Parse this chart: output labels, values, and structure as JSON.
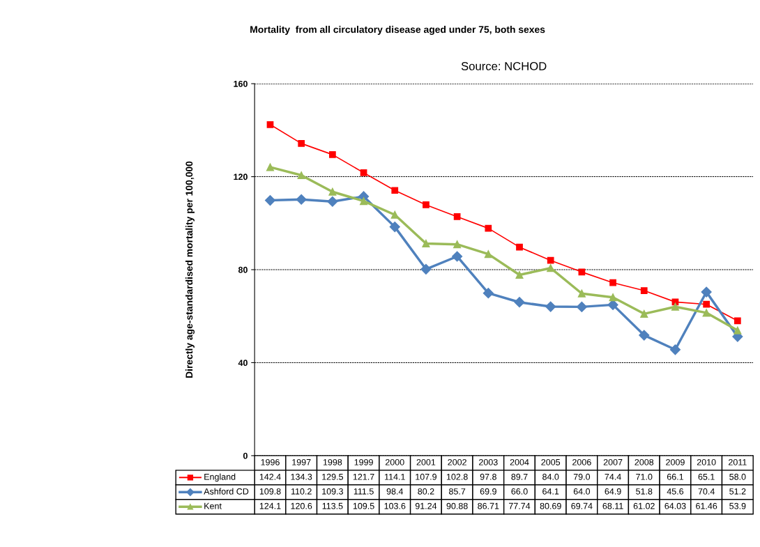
{
  "chart_data": {
    "type": "line",
    "title": "Mortality  from all circulatory disease aged under 75, both sexes",
    "subtitle": "Source: NCHOD",
    "ylabel": "Directly age-standardised mortality per 100,000",
    "categories": [
      "1996",
      "1997",
      "1998",
      "1999",
      "2000",
      "2001",
      "2002",
      "2003",
      "2004",
      "2005",
      "2006",
      "2007",
      "2008",
      "2009",
      "2010",
      "2011"
    ],
    "ylim": [
      0,
      160
    ],
    "yticks": [
      0,
      40,
      80,
      120,
      160
    ],
    "grid": "y",
    "legend": "bottom",
    "data_labels": true,
    "series": [
      {
        "name": "England",
        "color": "#ff0000",
        "marker": "square",
        "values": [
          142.4,
          134.3,
          129.5,
          121.7,
          114.1,
          107.9,
          102.8,
          97.8,
          89.7,
          84.0,
          79.0,
          74.4,
          71.0,
          66.1,
          65.1,
          58.0
        ],
        "value_labels": [
          "142.4",
          "134.3",
          "129.5",
          "121.7",
          "114.1",
          "107.9",
          "102.8",
          "97.8",
          "89.7",
          "84.0",
          "79.0",
          "74.4",
          "71.0",
          "66.1",
          "65.1",
          "58.0"
        ]
      },
      {
        "name": "Ashford CD",
        "color": "#4f81bd",
        "marker": "diamond",
        "values": [
          109.8,
          110.2,
          109.3,
          111.5,
          98.4,
          80.2,
          85.7,
          69.9,
          66.0,
          64.1,
          64.0,
          64.9,
          51.8,
          45.6,
          70.4,
          51.2
        ],
        "value_labels": [
          "109.8",
          "110.2",
          "109.3",
          "111.5",
          "98.4",
          "80.2",
          "85.7",
          "69.9",
          "66.0",
          "64.1",
          "64.0",
          "64.9",
          "51.8",
          "45.6",
          "70.4",
          "51.2"
        ]
      },
      {
        "name": "Kent",
        "color": "#9bbb59",
        "marker": "triangle",
        "values": [
          124.1,
          120.6,
          113.5,
          109.5,
          103.6,
          91.24,
          90.88,
          86.71,
          77.74,
          80.69,
          69.74,
          68.11,
          61.02,
          64.03,
          61.46,
          53.9
        ],
        "value_labels": [
          "124.1",
          "120.6",
          "113.5",
          "109.5",
          "103.6",
          "91.24",
          "90.88",
          "86.71",
          "77.74",
          "80.69",
          "69.74",
          "68.11",
          "61.02",
          "64.03",
          "61.46",
          "53.9"
        ]
      }
    ]
  }
}
